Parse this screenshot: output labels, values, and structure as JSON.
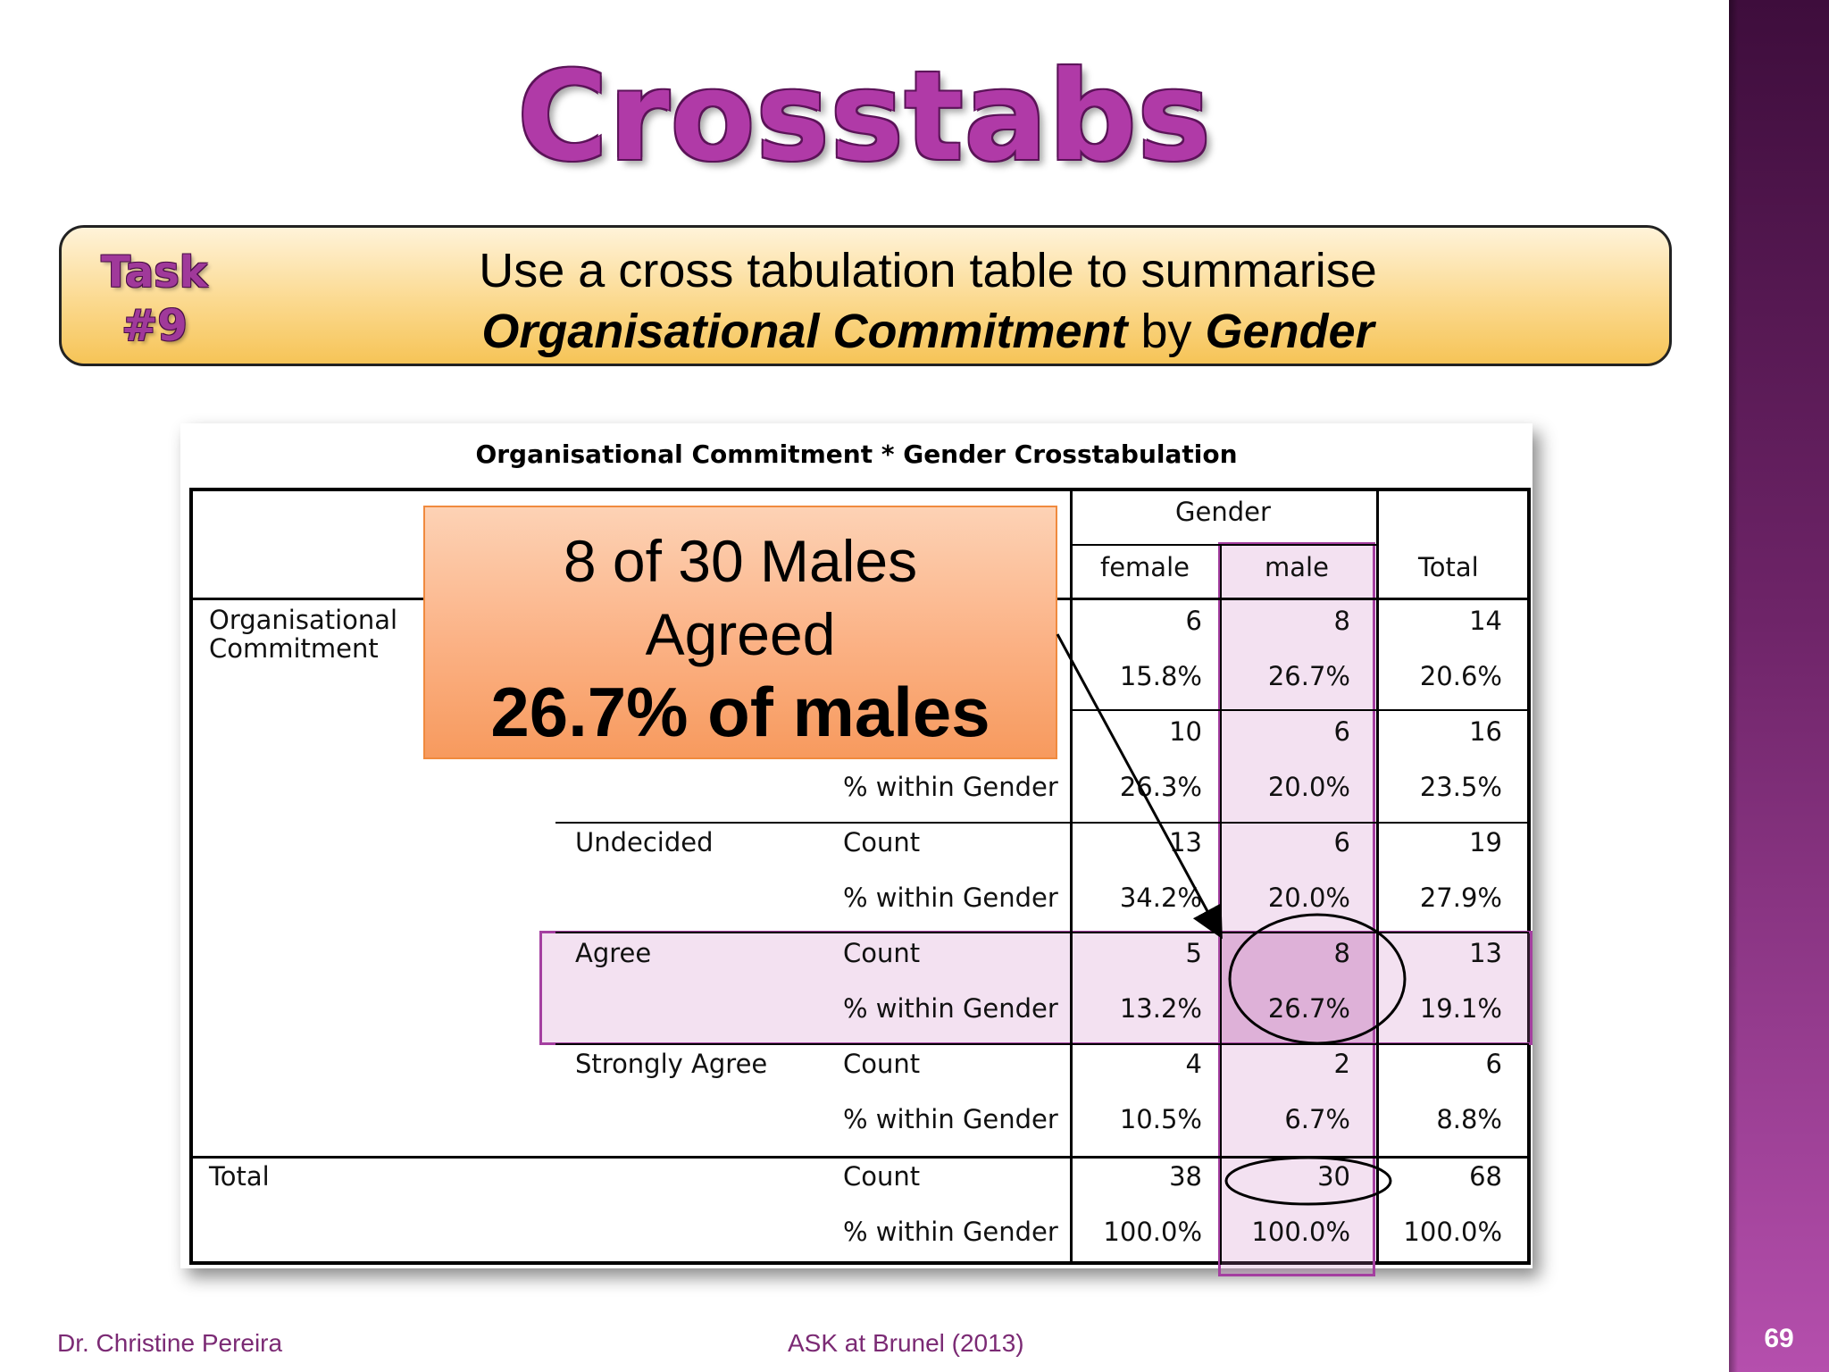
{
  "slide": {
    "title": "Crosstabs",
    "number": "69",
    "task": {
      "label_line1": "Task",
      "label_line2": "#9",
      "line1": "Use a cross tabulation table to summarise",
      "line2_part1": "Organisational Commitment",
      "line2_part2": " by ",
      "line2_part3": "Gender"
    },
    "callout": {
      "line1": "8 of 30 Males",
      "line2": "Agreed",
      "line3": "26.7% of males"
    },
    "footer": {
      "author": "Dr. Christine Pereira",
      "source": "ASK at Brunel (2013)"
    },
    "colors": {
      "accent": "#b03aa7",
      "highlight_border": "#a43fa0",
      "callout": "#fbb184"
    }
  },
  "table": {
    "title": "Organisational Commitment * Gender Crosstabulation",
    "header": {
      "group": "Gender",
      "female": "female",
      "male": "male",
      "total": "Total"
    },
    "row_variable_line1": "Organisational",
    "row_variable_line2": "Commitment",
    "total_label": "Total",
    "count_label": "Count",
    "pct_label": "% within Gender",
    "rows": [
      {
        "category": "",
        "count": [
          "6",
          "8",
          "14"
        ],
        "pct": [
          "15.8%",
          "26.7%",
          "20.6%"
        ]
      },
      {
        "category": "",
        "count": [
          "10",
          "6",
          "16"
        ],
        "pct": [
          "26.3%",
          "20.0%",
          "23.5%"
        ]
      },
      {
        "category": "Undecided",
        "count": [
          "13",
          "6",
          "19"
        ],
        "pct": [
          "34.2%",
          "20.0%",
          "27.9%"
        ]
      },
      {
        "category": "Agree",
        "count": [
          "5",
          "8",
          "13"
        ],
        "pct": [
          "13.2%",
          "26.7%",
          "19.1%"
        ]
      },
      {
        "category": "Strongly Agree",
        "count": [
          "4",
          "2",
          "6"
        ],
        "pct": [
          "10.5%",
          "6.7%",
          "8.8%"
        ]
      }
    ],
    "total": {
      "count": [
        "38",
        "30",
        "68"
      ],
      "pct": [
        "100.0%",
        "100.0%",
        "100.0%"
      ]
    }
  }
}
